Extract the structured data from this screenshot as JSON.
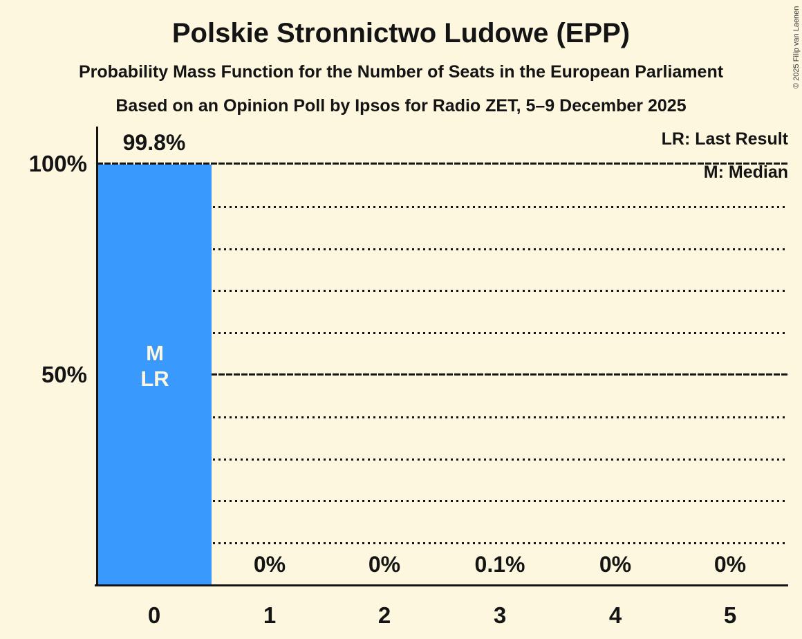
{
  "chart_data": {
    "type": "bar",
    "title": "Polskie Stronnictwo Ludowe (EPP)",
    "subtitle": "Probability Mass Function for the Number of Seats in the European Parliament",
    "source_line": "Based on an Opinion Poll by Ipsos for Radio ZET, 5–9 December 2025",
    "xlabel": "",
    "ylabel": "",
    "categories": [
      "0",
      "1",
      "2",
      "3",
      "4",
      "5"
    ],
    "values": [
      99.8,
      0,
      0,
      0.1,
      0,
      0
    ],
    "value_labels": [
      "99.8%",
      "0%",
      "0%",
      "0.1%",
      "0%",
      "0%"
    ],
    "ylim": [
      0,
      100
    ],
    "y_axis": {
      "tick_labels": [
        "100%",
        "50%"
      ],
      "tick_values": [
        100,
        50
      ],
      "gridline_step_pct": 10,
      "dotted_gridlines": [
        90,
        80,
        70,
        60,
        40,
        30,
        20,
        10
      ],
      "solid_gridlines": [
        100,
        50
      ]
    },
    "grid": "dotted-horizontal",
    "legend": {
      "last_result": "LR: Last Result",
      "median": "M: Median",
      "position": "top-right"
    },
    "annotations": {
      "median_label": "M",
      "last_result_label": "LR",
      "median_seats": 0,
      "last_result_seats": 0
    },
    "colors": {
      "bar": "#3999FC",
      "background": "#FCF7DE",
      "text": "#141414",
      "bar_label": "#FCF7DE"
    }
  },
  "copyright": "© 2025 Filip van Laenen"
}
